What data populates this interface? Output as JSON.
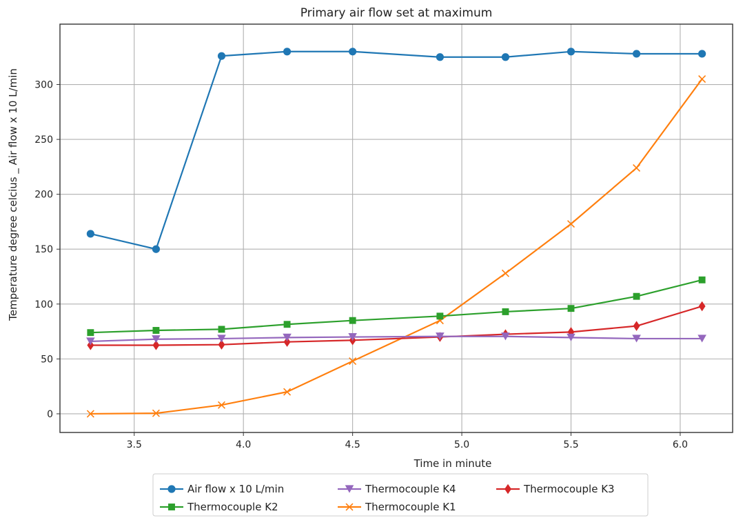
{
  "chart_data": {
    "type": "line",
    "title": "Primary air flow set at maximum",
    "xlabel": "Time in minute",
    "ylabel": "Temperature degree celcius _ Air flow x 10 L/min",
    "xlim": [
      3.16,
      6.24
    ],
    "ylim": [
      -17,
      355
    ],
    "xticks": [
      3.5,
      4.0,
      4.5,
      5.0,
      5.5,
      6.0
    ],
    "xtick_labels": [
      "3.5",
      "4.0",
      "4.5",
      "5.0",
      "5.5",
      "6.0"
    ],
    "yticks": [
      0,
      50,
      100,
      150,
      200,
      250,
      300
    ],
    "ytick_labels": [
      "0",
      "50",
      "100",
      "150",
      "200",
      "250",
      "300"
    ],
    "grid": true,
    "legend_position": "bottom-center",
    "x": [
      3.3,
      3.6,
      3.9,
      4.2,
      4.5,
      4.9,
      5.2,
      5.5,
      5.8,
      6.1
    ],
    "series": [
      {
        "name": "Air flow x 10 L/min",
        "color": "#1f77b4",
        "marker": "circle",
        "values": [
          164,
          150,
          326,
          330,
          330,
          325,
          325,
          330,
          328,
          328
        ]
      },
      {
        "name": "Thermocouple K1",
        "color": "#ff7f0e",
        "marker": "x",
        "values": [
          0,
          0.5,
          8,
          20,
          48,
          85,
          128,
          173,
          224,
          305
        ]
      },
      {
        "name": "Thermocouple K2",
        "color": "#2ca02c",
        "marker": "square",
        "values": [
          74,
          76,
          77,
          81.5,
          85,
          89,
          93,
          96,
          107,
          122
        ]
      },
      {
        "name": "Thermocouple K3",
        "color": "#d62728",
        "marker": "diamond",
        "values": [
          62.5,
          62.5,
          63,
          65.5,
          67,
          70,
          72.5,
          74.5,
          80,
          98
        ]
      },
      {
        "name": "Thermocouple K4",
        "color": "#9467bd",
        "marker": "triangle-down",
        "values": [
          66,
          68,
          68.5,
          69.5,
          70,
          70.5,
          70.5,
          69.5,
          68.5,
          68.5
        ]
      }
    ],
    "legend_order": [
      0,
      2,
      4,
      1,
      3
    ]
  }
}
